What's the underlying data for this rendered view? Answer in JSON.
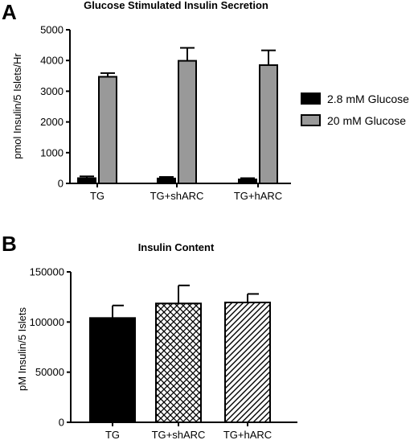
{
  "panels": {
    "a_label": "A",
    "b_label": "B"
  },
  "chart_data": [
    {
      "type": "bar",
      "title": "Glucose Stimulated Insulin Secretion",
      "ylabel": "pmol Insulin/5 Islets/Hr",
      "xlabel": "",
      "categories": [
        "TG",
        "TG+shARC",
        "TG+hARC"
      ],
      "ylim": [
        0,
        5000
      ],
      "yticks": [
        "0",
        "1000",
        "2000",
        "3000",
        "4000",
        "5000"
      ],
      "legend_position": "right",
      "series": [
        {
          "name": "2.8 mM Glucose",
          "color": "#000000",
          "values": [
            170,
            160,
            130
          ],
          "errors": [
            60,
            50,
            40
          ]
        },
        {
          "name": "20 mM Glucose",
          "color": "#999999",
          "values": [
            3470,
            3990,
            3850
          ],
          "errors": [
            120,
            420,
            480
          ]
        }
      ],
      "grid": false
    },
    {
      "type": "bar",
      "title": "Insulin Content",
      "ylabel": "pM Insulin/5 Islets",
      "xlabel": "",
      "categories": [
        "TG",
        "TG+shARC",
        "TG+hARC"
      ],
      "ylim": [
        0,
        150000
      ],
      "yticks": [
        "0",
        "50000",
        "100000",
        "150000"
      ],
      "values": [
        104000,
        118500,
        119500
      ],
      "errors": [
        12500,
        18000,
        8500
      ],
      "fills": [
        "solid-black",
        "crosshatch",
        "diagonal-hatch"
      ],
      "grid": false
    }
  ]
}
